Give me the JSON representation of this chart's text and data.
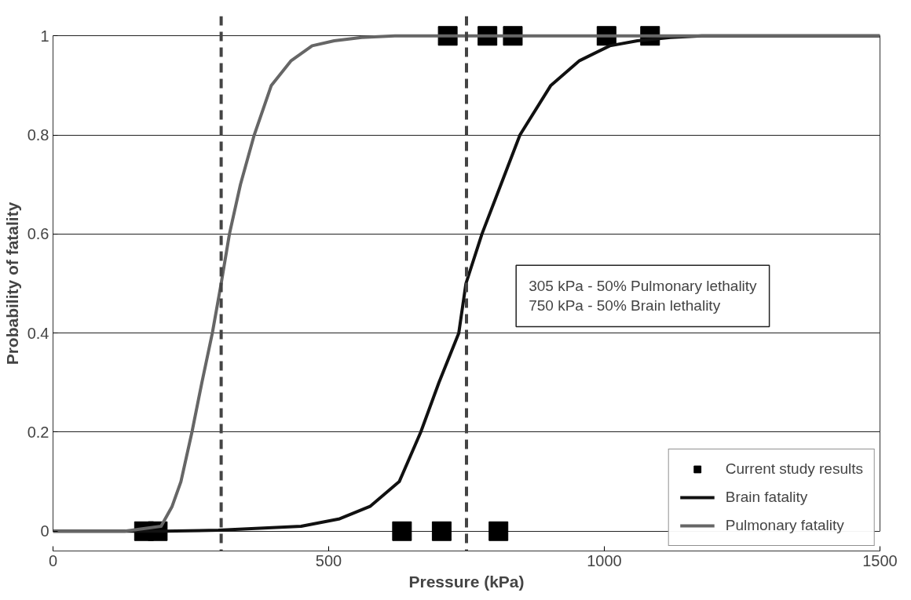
{
  "chart_data": {
    "type": "line",
    "xlabel": "Pressure (kPa)",
    "ylabel": "Probability of fatality",
    "xlim": [
      0,
      1500
    ],
    "ylim": [
      0,
      1
    ],
    "xticks": [
      0,
      500,
      1000,
      1500
    ],
    "yticks": [
      0,
      0.2,
      0.4,
      0.6,
      0.8,
      1
    ],
    "grid": "y",
    "legend": "bottom right",
    "line_style": "solid",
    "series": [
      {
        "name": "Current study results",
        "type": "scatter",
        "marker": "square",
        "color": "#000000",
        "x": [
          165,
          190,
          633,
          705,
          808,
          716,
          788,
          834,
          1004,
          1083
        ],
        "values": [
          0,
          0,
          0,
          0,
          0,
          1,
          1,
          1,
          1,
          1
        ]
      },
      {
        "name": "Brain fatality",
        "color": "#111111",
        "x": [
          0,
          200,
          300,
          450,
          520,
          575,
          628,
          667,
          700,
          736,
          749,
          778,
          847,
          903,
          955,
          1010,
          1060,
          1120,
          1177,
          1500
        ],
        "values": [
          0,
          0,
          0.002,
          0.01,
          0.025,
          0.05,
          0.1,
          0.2,
          0.3,
          0.4,
          0.5,
          0.6,
          0.8,
          0.9,
          0.95,
          0.98,
          0.99,
          0.997,
          1,
          1
        ]
      },
      {
        "name": "Pulmonary fatality",
        "color": "#666666",
        "x": [
          0,
          130,
          196,
          216,
          232,
          252,
          270,
          289,
          305,
          320,
          340,
          365,
          396,
          432,
          470,
          510,
          560,
          620,
          1500
        ],
        "values": [
          0,
          0,
          0.01,
          0.05,
          0.1,
          0.2,
          0.3,
          0.4,
          0.5,
          0.6,
          0.7,
          0.8,
          0.9,
          0.95,
          0.98,
          0.99,
          0.997,
          1,
          1
        ]
      }
    ],
    "ref_lines": [
      {
        "axis": "x",
        "value": 305,
        "color": "#444444",
        "line_style": "dashed"
      },
      {
        "axis": "x",
        "value": 750,
        "color": "#444444",
        "line_style": "dashed"
      }
    ],
    "annotations": [
      "305 kPa - 50% Pulmonary lethality",
      "750 kPa - 50% Brain lethality"
    ]
  }
}
